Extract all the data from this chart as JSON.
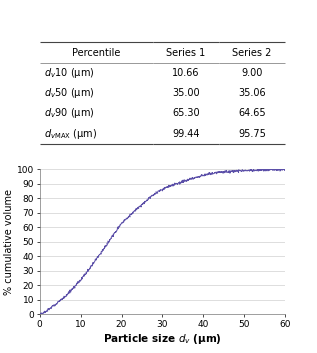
{
  "table_header": [
    "Percentile",
    "Series 1",
    "Series 2"
  ],
  "table_rows": [
    [
      "$d_v$10 (μm)",
      "10.66",
      "9.00"
    ],
    [
      "$d_v$50 (μm)",
      "35.00",
      "35.06"
    ],
    [
      "$d_v$90 (μm)",
      "65.30",
      "64.65"
    ],
    [
      "$d_{v\\mathrm{MAX}}$ (μm)",
      "99.44",
      "95.75"
    ]
  ],
  "xlabel": "Particle size $d_v$ (μm)",
  "ylabel": "% cumulative volume",
  "xlim": [
    0,
    60
  ],
  "ylim": [
    0,
    100
  ],
  "xticks": [
    0,
    10,
    20,
    30,
    40,
    50,
    60
  ],
  "yticks": [
    0,
    10,
    20,
    30,
    40,
    50,
    60,
    70,
    80,
    90,
    100
  ],
  "line_color": "#5b4fa8",
  "background_color": "#ffffff",
  "grid_color": "#d0d0d0",
  "curve_points_x": [
    0,
    0.5,
    1.0,
    1.5,
    2.0,
    2.5,
    3.0,
    3.5,
    4.0,
    4.5,
    5.0,
    5.5,
    6.0,
    6.5,
    7.0,
    7.5,
    8.0,
    9.0,
    10.0,
    11.0,
    12.0,
    13.0,
    14.0,
    15.0,
    16.0,
    17.0,
    18.0,
    19.0,
    20.0,
    21.0,
    22.0,
    23.0,
    24.0,
    25.0,
    26.0,
    27.0,
    28.0,
    29.0,
    30.0,
    31.0,
    32.0,
    33.0,
    34.0,
    35.0,
    36.0,
    37.0,
    38.0,
    39.0,
    40.0,
    42.0,
    44.0,
    46.0,
    48.0,
    50.0,
    52.0,
    55.0,
    58.0,
    60.0
  ],
  "curve_points_y": [
    0,
    0.5,
    1.0,
    1.8,
    2.8,
    3.8,
    4.8,
    6.0,
    7.2,
    8.2,
    9.5,
    10.5,
    11.8,
    13.0,
    14.5,
    16.0,
    17.5,
    20.5,
    23.5,
    27.0,
    30.5,
    34.5,
    38.5,
    42.5,
    46.5,
    50.5,
    54.5,
    58.5,
    62.5,
    65.5,
    68.0,
    70.5,
    73.0,
    75.5,
    78.0,
    80.5,
    82.5,
    84.5,
    86.0,
    87.5,
    88.5,
    89.5,
    90.5,
    91.5,
    92.5,
    93.5,
    94.2,
    95.0,
    95.8,
    97.0,
    97.8,
    98.3,
    98.8,
    99.0,
    99.2,
    99.5,
    99.7,
    99.8
  ]
}
